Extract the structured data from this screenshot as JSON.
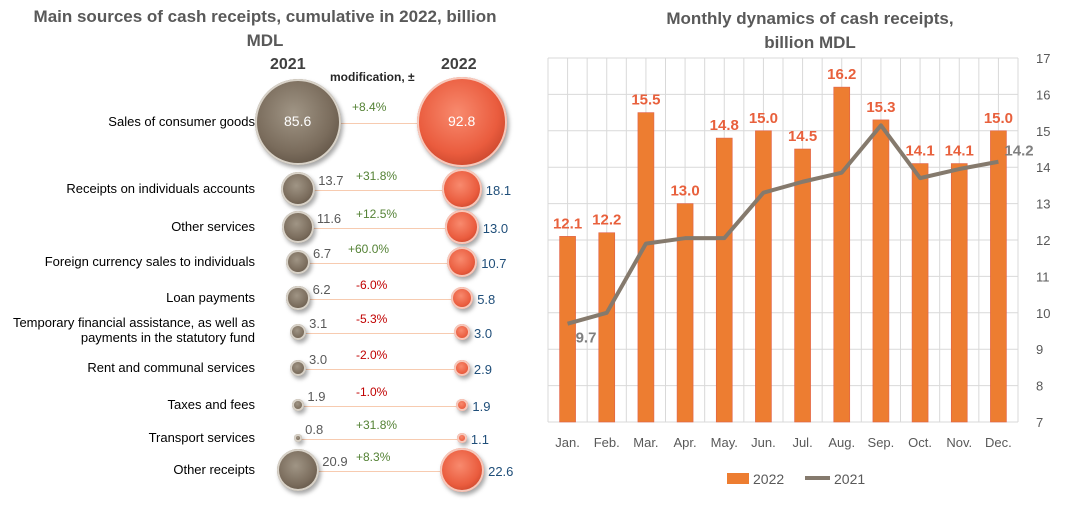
{
  "left": {
    "title_line1": "Main sources of cash receipts, cumulative in 2022, billion",
    "title_line2": "MDL",
    "col_2021": "2021",
    "col_2022": "2022",
    "col_mod": "modification, ±",
    "rows": [
      {
        "label": "Sales of consumer goods",
        "v2021": "85.6",
        "v2022": "92.8",
        "change": "+8.4%"
      },
      {
        "label": "Receipts on individuals accounts",
        "v2021": "13.7",
        "v2022": "18.1",
        "change": "+31.8%"
      },
      {
        "label": "Other services",
        "v2021": "11.6",
        "v2022": "13.0",
        "change": "+12.5%"
      },
      {
        "label": "Foreign currency sales to individuals",
        "v2021": "6.7",
        "v2022": "10.7",
        "change": "+60.0%"
      },
      {
        "label": "Loan payments",
        "v2021": "6.2",
        "v2022": "5.8",
        "change": "-6.0%"
      },
      {
        "label": "Temporary financial assistance, as well as payments in the statutory fund",
        "v2021": "3.1",
        "v2022": "3.0",
        "change": "-5.3%"
      },
      {
        "label": "Rent and communal services",
        "v2021": "3.0",
        "v2022": "2.9",
        "change": "-2.0%"
      },
      {
        "label": "Taxes and fees",
        "v2021": "1.9",
        "v2022": "1.9",
        "change": "-1.0%"
      },
      {
        "label": "Transport services",
        "v2021": "0.8",
        "v2022": "1.1",
        "change": "+31.8%"
      },
      {
        "label": "Other receipts",
        "v2021": "20.9",
        "v2022": "22.6",
        "change": "+8.3%"
      }
    ]
  },
  "chart_data": {
    "type": "bar",
    "title": "Monthly dynamics of cash receipts, billion MDL",
    "categories": [
      "Jan.",
      "Feb.",
      "Mar.",
      "Apr.",
      "May.",
      "Jun.",
      "Jul.",
      "Aug.",
      "Sep.",
      "Oct.",
      "Nov.",
      "Dec."
    ],
    "series": [
      {
        "name": "2022",
        "type": "bar",
        "color": "#ed7d31",
        "values": [
          12.1,
          12.2,
          15.5,
          13.0,
          14.8,
          15.0,
          14.5,
          16.2,
          15.3,
          14.1,
          14.1,
          15.0
        ],
        "labels": [
          "12.1",
          "12.2",
          "15.5",
          "13.0",
          "14.8",
          "15.0",
          "14.5",
          "16.2",
          "15.3",
          "14.1",
          "14.1",
          "15.0"
        ]
      },
      {
        "name": "2021",
        "type": "line",
        "color": "#857a6d",
        "values": [
          9.7,
          10.0,
          11.9,
          12.05,
          12.05,
          13.3,
          13.6,
          13.85,
          15.15,
          13.7,
          13.95,
          14.15
        ],
        "labels": {
          "0": "9.7",
          "11": "14.2"
        }
      }
    ],
    "ylim": [
      7,
      17
    ],
    "yticks": [
      "7",
      "8",
      "9",
      "10",
      "11",
      "12",
      "13",
      "14",
      "15",
      "16",
      "17"
    ],
    "y_axis_side": "right",
    "grid": true,
    "legend": "bottom"
  }
}
